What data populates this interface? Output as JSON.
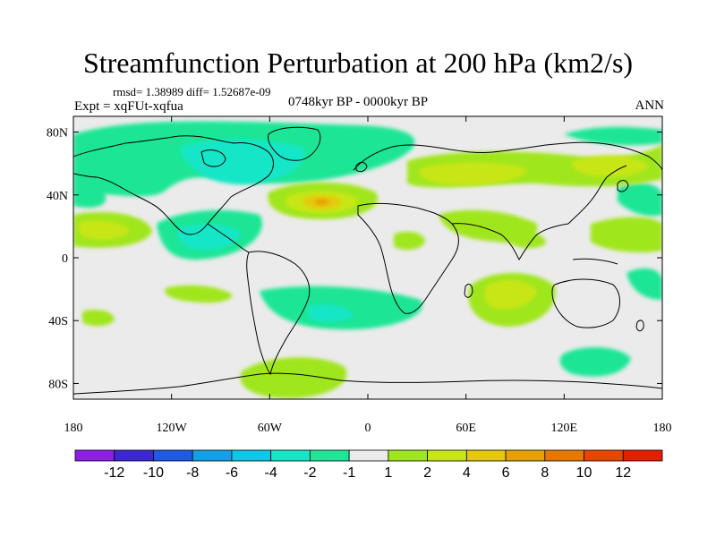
{
  "header": {
    "title": "Streamfunction Perturbation at 200 hPa (km2/s)",
    "stats": "rmsd= 1.38989 diff= 1.52687e-09",
    "expt": "Expt = xqFUt-xqfua",
    "period": "0748kyr BP - 0000kyr BP",
    "season": "ANN"
  },
  "map": {
    "lat_ticks": [
      {
        "value": 80,
        "label": "80N"
      },
      {
        "value": 40,
        "label": "40N"
      },
      {
        "value": 0,
        "label": "0"
      },
      {
        "value": -40,
        "label": "40S"
      },
      {
        "value": -80,
        "label": "80S"
      }
    ],
    "lon_ticks": [
      {
        "value": -180,
        "label": "180"
      },
      {
        "value": -120,
        "label": "120W"
      },
      {
        "value": -60,
        "label": "60W"
      },
      {
        "value": 0,
        "label": "0"
      },
      {
        "value": 60,
        "label": "60E"
      },
      {
        "value": 120,
        "label": "120E"
      },
      {
        "value": 180,
        "label": "180"
      }
    ],
    "background_color": "#ebebeb"
  },
  "colorbar": {
    "colors": [
      "#8c1ee6",
      "#3c28d2",
      "#1e5ae6",
      "#14a0e6",
      "#0ac8e6",
      "#14e6c8",
      "#1ee696",
      "#ebebeb",
      "#a0e61e",
      "#c8e614",
      "#e6c80a",
      "#e6a000",
      "#e67800",
      "#e64600",
      "#e61e00"
    ],
    "labels": [
      "-12",
      "-10",
      "-8",
      "-6",
      "-4",
      "-2",
      "-1",
      "1",
      "2",
      "4",
      "6",
      "8",
      "10",
      "12"
    ]
  }
}
